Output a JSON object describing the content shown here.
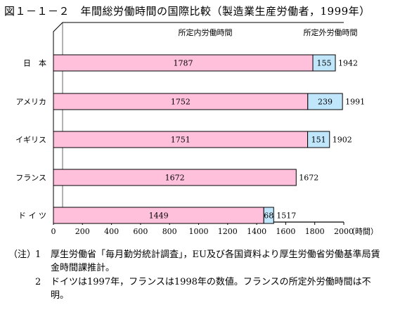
{
  "title": "図１－１－２　年間総労働時間の国際比較（製造業生産労働者，1999年）",
  "chart_data": {
    "type": "bar",
    "orientation": "horizontal",
    "stacked": true,
    "series_labels": [
      "所定内労働時間",
      "所定外労働時間"
    ],
    "categories": [
      "日　本",
      "アメリカ",
      "イギリス",
      "フランス",
      "ド イ ツ"
    ],
    "series": [
      {
        "name": "所定内労働時間",
        "color": "#ffc0dc",
        "values": [
          1787,
          1752,
          1751,
          1672,
          1449
        ]
      },
      {
        "name": "所定外労働時間",
        "color": "#bfe6fb",
        "values": [
          155,
          239,
          151,
          null,
          68
        ]
      }
    ],
    "totals": [
      1942,
      1991,
      1902,
      1672,
      1517
    ],
    "xlim": [
      0,
      2000
    ],
    "xticks": [
      0,
      200,
      400,
      600,
      800,
      1000,
      1200,
      1400,
      1600,
      1800,
      2000
    ],
    "xunit": "（時間）"
  },
  "notes": {
    "prefix": "（注）",
    "items": [
      {
        "num": "1",
        "text": "厚生労働省「毎月勤労統計調査」，EU及び各国資料より厚生労働省労働基準局賃金時間課推計。"
      },
      {
        "num": "2",
        "text": "ドイツは1997年，フランスは1998年の数値。フランスの所定外労働時間は不明。"
      }
    ]
  }
}
